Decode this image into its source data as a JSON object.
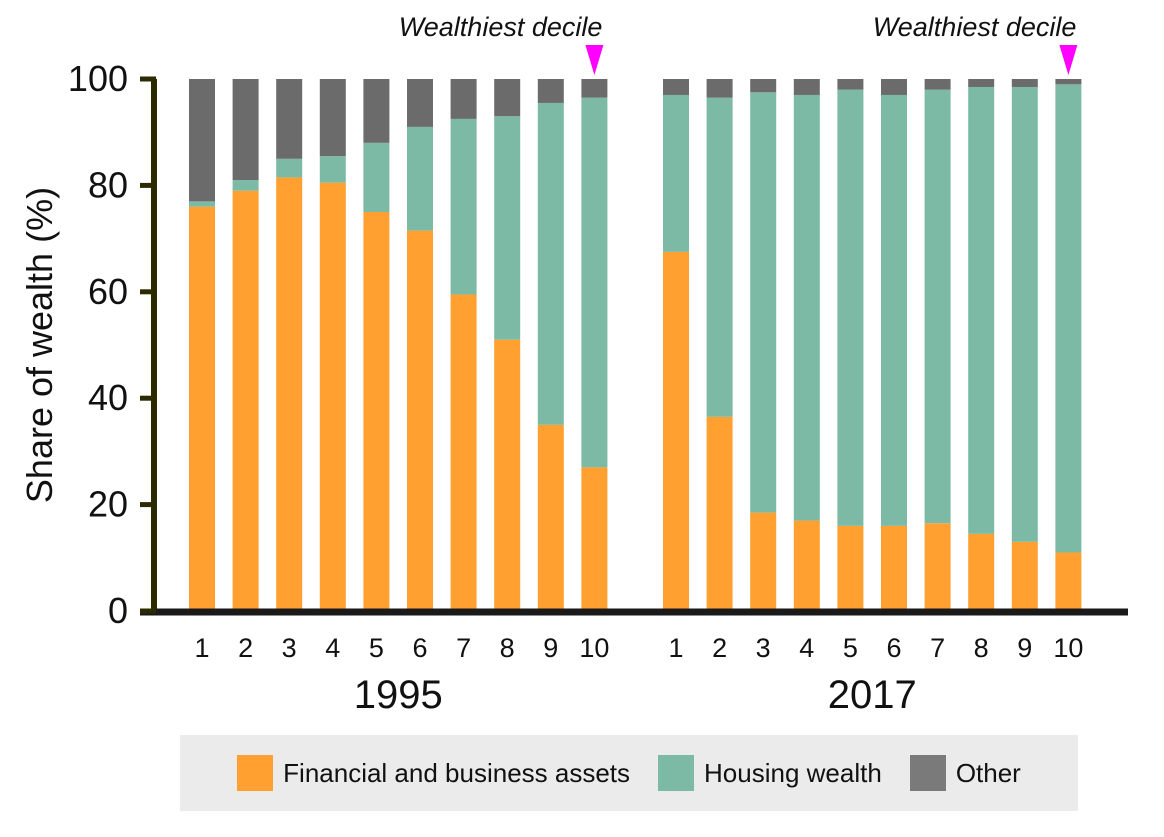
{
  "chart_data": {
    "type": "bar",
    "stacked": true,
    "ylabel": "Share of wealth (%)",
    "ylim": [
      0,
      100
    ],
    "yticks": [
      0,
      20,
      40,
      60,
      80,
      100
    ],
    "grid": false,
    "legend_position": "bottom",
    "groups": [
      {
        "name": "1995",
        "categories": [
          "1",
          "2",
          "3",
          "4",
          "5",
          "6",
          "7",
          "8",
          "9",
          "10"
        ],
        "annotation": "Wealthiest decile",
        "series": [
          {
            "name": "Financial and business assets",
            "values": [
              76,
              79,
              81.5,
              80.5,
              75,
              71.5,
              59.5,
              51,
              35,
              27
            ]
          },
          {
            "name": "Housing wealth",
            "values": [
              1,
              2,
              3.5,
              5,
              13,
              19.5,
              33,
              42,
              60.5,
              69.5
            ]
          },
          {
            "name": "Other",
            "values": [
              23,
              19,
              15,
              14.5,
              12,
              9,
              7.5,
              7,
              4.5,
              3.5
            ]
          }
        ]
      },
      {
        "name": "2017",
        "categories": [
          "1",
          "2",
          "3",
          "4",
          "5",
          "6",
          "7",
          "8",
          "9",
          "10"
        ],
        "annotation": "Wealthiest decile",
        "series": [
          {
            "name": "Financial and business assets",
            "values": [
              67.5,
              36.5,
              18.5,
              17,
              16,
              16,
              16.5,
              14.5,
              13,
              11
            ]
          },
          {
            "name": "Housing wealth",
            "values": [
              29.5,
              60,
              79,
              80,
              82,
              81,
              81.5,
              84,
              85.5,
              88
            ]
          },
          {
            "name": "Other",
            "values": [
              3,
              3.5,
              2.5,
              3,
              2,
              3,
              2,
              1.5,
              1.5,
              1
            ]
          }
        ]
      }
    ],
    "colors": {
      "Financial and business assets": "#ffa030",
      "Housing wealth": "#7dbaa5",
      "Other": "#6b6b6b",
      "annotation_marker": "#ff00ff",
      "axis": "#1a1a1a",
      "y_axis": "#2b2a00"
    }
  },
  "legend": {
    "items": [
      {
        "label": "Financial and business assets",
        "color": "#ffa030"
      },
      {
        "label": "Housing wealth",
        "color": "#7dbaa5"
      },
      {
        "label": "Other",
        "color": "#7a7a7a"
      }
    ]
  }
}
